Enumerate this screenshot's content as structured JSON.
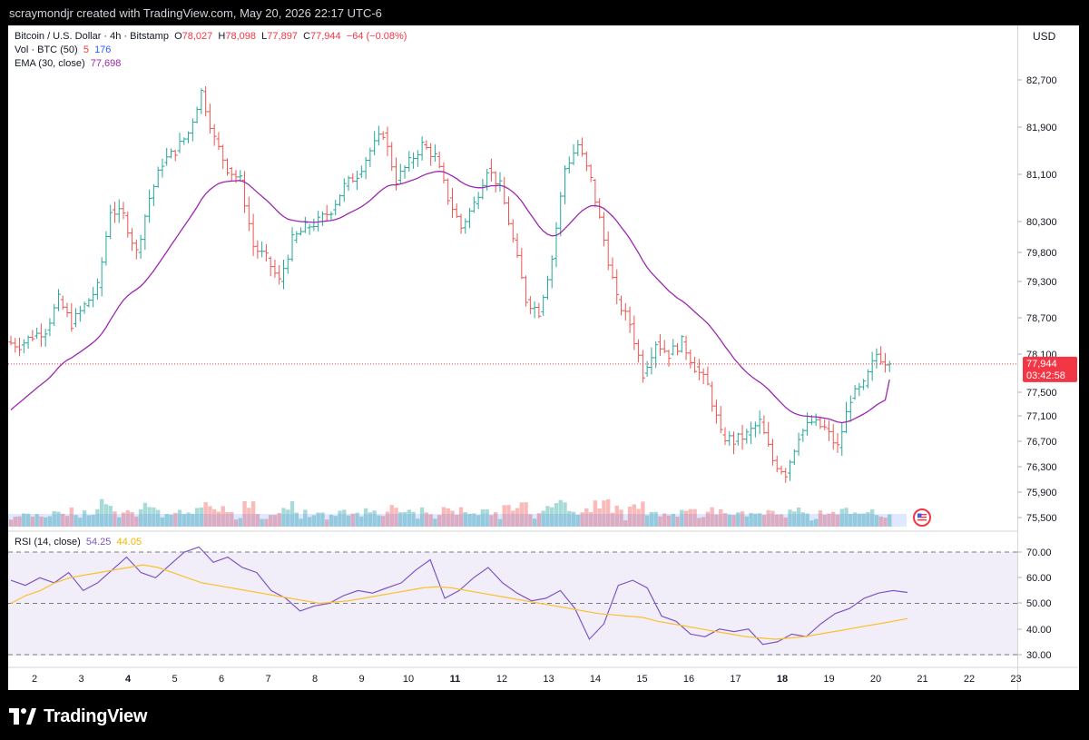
{
  "header": {
    "credit": "scraymondjr created with TradingView.com, May 20, 2026 22:17 UTC-6"
  },
  "legend": {
    "symbol": "Bitcoin / U.S. Dollar · 4h · Bitstamp",
    "o_label": "O",
    "o": "78,027",
    "h_label": "H",
    "h": "78,098",
    "l_label": "L",
    "l": "77,897",
    "c_label": "C",
    "c": "77,944",
    "change": "−64 (−0.08%)",
    "vol_label": "Vol · BTC (50)",
    "vol_a": "5",
    "vol_b": "176",
    "ema_label": "EMA (30, close)",
    "ema_value": "77,698"
  },
  "rsi_legend": {
    "label": "RSI (14, close)",
    "value": "54.25",
    "ma": "44.05"
  },
  "currency": "USD",
  "price_badge": {
    "price": "77,944",
    "countdown": "03:42:58"
  },
  "brand": {
    "name": "TradingView"
  },
  "colors": {
    "up": "#26a69a",
    "down": "#ef5350",
    "ema": "#9c27b0",
    "rsi": "#7e57c2",
    "rsi_ma": "#fbc02d",
    "badge": "#f23645"
  },
  "chart_data": [
    {
      "type": "candlestick",
      "title": "Bitcoin / U.S. Dollar · 4h · Bitstamp",
      "x_ticks": [
        "2",
        "3",
        "4",
        "5",
        "6",
        "7",
        "8",
        "9",
        "10",
        "11",
        "12",
        "13",
        "14",
        "15",
        "16",
        "17",
        "18",
        "19",
        "20",
        "21",
        "22",
        "23"
      ],
      "x_ticks_bold": [
        "4",
        "11",
        "18"
      ],
      "y_ticks": [
        "82,700",
        "81,900",
        "81,100",
        "80,300",
        "79,800",
        "79,300",
        "78,700",
        "78,100",
        "77,500",
        "77,100",
        "76,700",
        "76,300",
        "75,900",
        "75,500"
      ],
      "y_scale": "log",
      "close_path": [
        78300,
        78250,
        78400,
        78500,
        79000,
        78600,
        78900,
        79200,
        80500,
        80400,
        79800,
        80700,
        81300,
        81500,
        81800,
        82500,
        81700,
        81200,
        81000,
        79900,
        79700,
        79300,
        80000,
        80200,
        80300,
        80500,
        80900,
        81100,
        81500,
        81800,
        81000,
        81300,
        81600,
        81400,
        80700,
        80200,
        80600,
        81200,
        80900,
        80000,
        79000,
        78800,
        79700,
        81200,
        81600,
        81000,
        80000,
        79000,
        78600,
        77800,
        78300,
        78100,
        78300,
        77900,
        77600,
        76800,
        76700,
        76800,
        77000,
        76400,
        76200,
        76800,
        77000,
        76900,
        76600,
        77400,
        77600,
        78100,
        77944
      ],
      "ema": {
        "name": "EMA (30, close)",
        "last": 77698
      },
      "volume": {
        "name": "Vol · BTC (50)"
      },
      "current_price": 77944
    },
    {
      "type": "line",
      "title": "RSI (14, close)",
      "y_ticks": [
        "70.00",
        "60.00",
        "50.00",
        "40.00",
        "30.00"
      ],
      "bands": [
        70,
        50,
        30
      ],
      "series": [
        {
          "name": "RSI",
          "values": [
            59,
            57,
            60,
            58,
            62,
            55,
            58,
            63,
            68,
            62,
            60,
            65,
            70,
            72,
            66,
            68,
            64,
            62,
            55,
            52,
            47,
            49,
            50,
            53,
            55,
            54,
            56,
            58,
            63,
            67,
            52,
            55,
            60,
            64,
            58,
            54,
            51,
            52,
            55,
            48,
            36,
            42,
            57,
            59,
            56,
            45,
            43,
            38,
            37,
            40,
            39,
            40,
            34,
            35,
            38,
            37,
            42,
            46,
            48,
            52,
            54,
            55,
            54.25
          ],
          "last": 54.25
        },
        {
          "name": "RSI MA",
          "values": [
            50,
            53,
            55,
            58,
            60,
            61,
            62,
            63,
            64,
            65,
            64,
            62,
            60,
            58,
            57,
            56,
            55,
            54,
            53,
            52,
            51,
            50,
            50.5,
            51,
            52,
            53,
            54,
            55,
            56,
            56.5,
            56,
            55,
            54,
            53,
            52,
            51,
            50,
            49,
            48,
            47,
            46,
            45.5,
            45,
            44.5,
            43,
            42,
            41,
            40,
            39,
            38,
            37,
            36.5,
            36,
            36.5,
            37,
            38,
            39,
            40,
            41,
            42,
            43,
            44.05
          ],
          "last": 44.05
        }
      ]
    }
  ]
}
